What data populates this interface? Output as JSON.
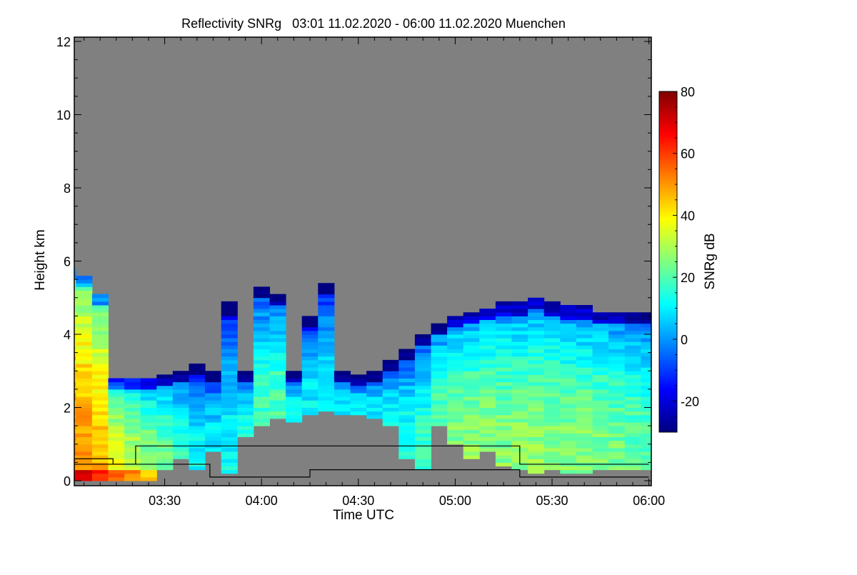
{
  "chart_data": {
    "type": "heatmap",
    "title": "Reflectivity SNRg   03:01 11.02.2020 - 06:00 11.02.2020 Muenchen",
    "xlabel": "Time UTC",
    "ylabel": "Height km",
    "xlim_minutes_after_0300": [
      1,
      180
    ],
    "ylim": [
      0,
      12
    ],
    "x_ticks": [
      "03:30",
      "04:00",
      "04:30",
      "05:00",
      "05:30",
      "06:00"
    ],
    "y_ticks": [
      "0",
      "2",
      "4",
      "6",
      "8",
      "10",
      "12"
    ],
    "colorbar": {
      "label": "SNRg dB",
      "range": [
        -30,
        80
      ],
      "ticks": [
        "-20",
        "0",
        "20",
        "40",
        "60",
        "80"
      ],
      "colormap": "jet"
    },
    "background_color": "#808080",
    "echo_columns": {
      "time_minutes_after_0300": [
        0,
        5,
        10,
        15,
        20,
        25,
        30,
        35,
        40,
        45,
        50,
        55,
        60,
        65,
        70,
        75,
        80,
        85,
        90,
        95,
        100,
        105,
        110,
        115,
        120,
        125,
        130,
        135,
        140,
        145,
        150,
        155,
        160,
        165,
        170,
        175,
        180
      ],
      "top_km": [
        5.7,
        5.5,
        5.0,
        2.8,
        2.8,
        2.8,
        2.9,
        3.0,
        3.2,
        3.0,
        4.8,
        3.0,
        5.2,
        5.0,
        3.0,
        4.5,
        5.3,
        3.0,
        2.9,
        3.0,
        3.3,
        3.6,
        4.0,
        4.3,
        4.5,
        4.6,
        4.7,
        4.8,
        4.8,
        4.9,
        4.8,
        4.7,
        4.7,
        4.6,
        4.6,
        4.6,
        4.6
      ],
      "base_km": [
        0,
        0,
        0,
        0,
        0,
        0,
        0.3,
        0.6,
        0.3,
        0.8,
        0.2,
        1.2,
        1.5,
        1.7,
        1.6,
        1.8,
        1.9,
        1.8,
        1.8,
        1.7,
        1.5,
        0.6,
        0.3,
        1.5,
        1.0,
        0.6,
        0.8,
        0.4,
        0.3,
        0.2,
        0.3,
        0.2,
        0.2,
        0.3,
        0.3,
        0.3,
        0.3
      ],
      "core_snr_db": [
        52,
        50,
        47,
        36,
        32,
        28,
        22,
        16,
        12,
        10,
        12,
        15,
        18,
        20,
        12,
        10,
        12,
        10,
        9,
        10,
        12,
        15,
        18,
        20,
        25,
        26,
        26,
        26,
        27,
        27,
        26,
        26,
        26,
        25,
        24,
        22,
        20
      ]
    },
    "overlay_lines": [
      {
        "name": "line-1",
        "points": [
          [
            0,
            0.6
          ],
          [
            14,
            0.6
          ],
          [
            14,
            0.45
          ],
          [
            21,
            0.45
          ],
          [
            21,
            0.95
          ],
          [
            140,
            0.95
          ],
          [
            140,
            0.45
          ],
          [
            180,
            0.45
          ]
        ]
      },
      {
        "name": "line-2",
        "points": [
          [
            0,
            0.45
          ],
          [
            14,
            0.45
          ],
          [
            14,
            0.45
          ],
          [
            44,
            0.45
          ],
          [
            44,
            0.1
          ],
          [
            75,
            0.1
          ],
          [
            75,
            0.3
          ],
          [
            140,
            0.3
          ],
          [
            140,
            0.1
          ],
          [
            180,
            0.1
          ]
        ]
      }
    ]
  }
}
